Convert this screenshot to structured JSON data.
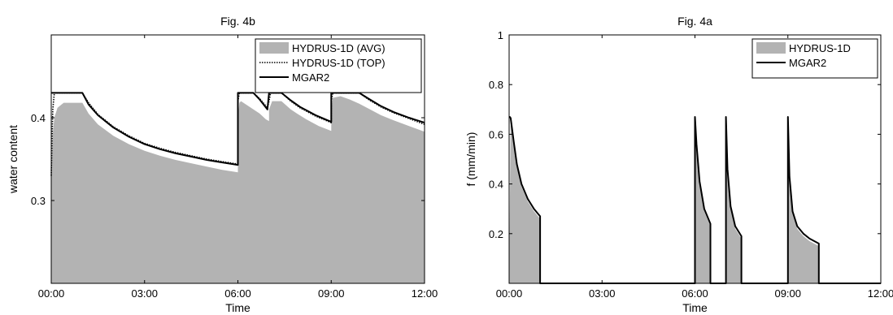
{
  "chart_data": [
    {
      "type": "area",
      "title": "Fig. 4b",
      "xlabel": "Time",
      "ylabel": "water content",
      "xlim": [
        0,
        12
      ],
      "ylim": [
        0.2,
        0.5
      ],
      "x_tick_labels": [
        "00:00",
        "03:00",
        "06:00",
        "09:00",
        "12:00"
      ],
      "x_tick_values": [
        0,
        3,
        6,
        9,
        12
      ],
      "y_tick_labels": [
        "0.3",
        "0.4"
      ],
      "y_tick_values": [
        0.3,
        0.4
      ],
      "grid": false,
      "legend_position": "top-right",
      "legend": [
        "HYDRUS-1D (AVG)",
        "HYDRUS-1D (TOP)",
        "MGAR2"
      ],
      "series": [
        {
          "name": "HYDRUS-1D (AVG)",
          "style": "filled-area",
          "color": "#b3b3b3",
          "x": [
            0,
            0.05,
            0.1,
            0.2,
            0.4,
            1.0,
            1.2,
            1.5,
            2.0,
            2.5,
            3.0,
            3.5,
            4.0,
            4.5,
            5.0,
            5.5,
            6.0,
            6.0,
            6.05,
            6.1,
            6.5,
            6.7,
            6.9,
            7.0,
            7.0,
            7.1,
            7.4,
            7.7,
            7.9,
            8.2,
            8.6,
            9.0,
            9.0,
            9.05,
            9.3,
            9.6,
            9.9,
            10.2,
            10.6,
            11.0,
            11.5,
            12.0
          ],
          "y": [
            0.33,
            0.38,
            0.4,
            0.412,
            0.418,
            0.418,
            0.405,
            0.392,
            0.378,
            0.368,
            0.36,
            0.354,
            0.349,
            0.345,
            0.341,
            0.337,
            0.334,
            0.4,
            0.418,
            0.42,
            0.41,
            0.405,
            0.398,
            0.396,
            0.41,
            0.42,
            0.42,
            0.41,
            0.405,
            0.398,
            0.39,
            0.384,
            0.41,
            0.424,
            0.426,
            0.422,
            0.417,
            0.411,
            0.403,
            0.397,
            0.39,
            0.383
          ]
        },
        {
          "name": "HYDRUS-1D (TOP)",
          "style": "dotted-line",
          "color": "#000000",
          "x": [
            0,
            0.05,
            0.1,
            1.0,
            1.2,
            1.5,
            2.0,
            2.5,
            3.0,
            3.5,
            4.0,
            4.5,
            5.0,
            5.5,
            6.0,
            6.0,
            6.05,
            6.5,
            6.7,
            6.95,
            7.0,
            7.05,
            7.4,
            7.7,
            8.0,
            8.5,
            9.0,
            9.0,
            9.05,
            9.9,
            10.2,
            10.6,
            11.0,
            11.5,
            12.0
          ],
          "y": [
            0.33,
            0.41,
            0.43,
            0.43,
            0.418,
            0.404,
            0.389,
            0.378,
            0.369,
            0.363,
            0.358,
            0.354,
            0.35,
            0.347,
            0.344,
            0.42,
            0.43,
            0.43,
            0.423,
            0.412,
            0.42,
            0.43,
            0.43,
            0.42,
            0.412,
            0.402,
            0.394,
            0.42,
            0.43,
            0.43,
            0.422,
            0.413,
            0.406,
            0.399,
            0.392
          ]
        },
        {
          "name": "MGAR2",
          "style": "solid-line",
          "color": "#000000",
          "x": [
            0,
            1.0,
            1.2,
            1.5,
            2.0,
            2.5,
            3.0,
            3.5,
            4.0,
            4.5,
            5.0,
            5.5,
            6.0,
            6.0,
            6.5,
            6.7,
            6.95,
            7.0,
            7.4,
            7.7,
            8.0,
            8.5,
            9.0,
            9.0,
            9.9,
            10.2,
            10.6,
            11.0,
            11.5,
            12.0
          ],
          "y": [
            0.43,
            0.43,
            0.416,
            0.403,
            0.388,
            0.377,
            0.368,
            0.362,
            0.357,
            0.353,
            0.349,
            0.346,
            0.343,
            0.43,
            0.43,
            0.422,
            0.41,
            0.43,
            0.43,
            0.421,
            0.413,
            0.403,
            0.395,
            0.43,
            0.43,
            0.423,
            0.414,
            0.407,
            0.4,
            0.394
          ]
        }
      ]
    },
    {
      "type": "area",
      "title": "Fig. 4a",
      "xlabel": "Time",
      "ylabel": "f (mm/min)",
      "xlim": [
        0,
        12
      ],
      "ylim": [
        0,
        1
      ],
      "x_tick_labels": [
        "00:00",
        "03:00",
        "06:00",
        "09:00",
        "12:00"
      ],
      "x_tick_values": [
        0,
        3,
        6,
        9,
        12
      ],
      "y_tick_labels": [
        "0.2",
        "0.4",
        "0.6",
        "0.8",
        "1"
      ],
      "y_tick_values": [
        0.2,
        0.4,
        0.6,
        0.8,
        1
      ],
      "grid": false,
      "legend_position": "top-right",
      "legend": [
        "HYDRUS-1D",
        "MGAR2"
      ],
      "series": [
        {
          "name": "HYDRUS-1D",
          "style": "filled-area",
          "color": "#b3b3b3",
          "x": [
            0,
            0.05,
            0.15,
            0.25,
            0.4,
            0.6,
            0.8,
            1.0,
            1.0,
            6.0,
            6.0,
            6.05,
            6.15,
            6.3,
            6.5,
            6.5,
            7.0,
            7.0,
            7.05,
            7.15,
            7.3,
            7.5,
            7.5,
            9.0,
            9.0,
            9.05,
            9.15,
            9.3,
            9.5,
            9.7,
            10.0,
            10.0,
            12.0
          ],
          "y": [
            0,
            0.66,
            0.56,
            0.47,
            0.39,
            0.33,
            0.29,
            0.26,
            0,
            0,
            0.66,
            0.55,
            0.4,
            0.29,
            0.23,
            0,
            0,
            0.66,
            0.45,
            0.3,
            0.22,
            0.18,
            0,
            0,
            0.66,
            0.42,
            0.28,
            0.22,
            0.19,
            0.17,
            0.15,
            0,
            0
          ]
        },
        {
          "name": "MGAR2",
          "style": "solid-line",
          "color": "#000000",
          "x": [
            0,
            0.02,
            0.05,
            0.15,
            0.25,
            0.4,
            0.6,
            0.8,
            1.0,
            1.0,
            6.0,
            6.0,
            6.05,
            6.15,
            6.3,
            6.5,
            6.5,
            7.0,
            7.0,
            7.05,
            7.15,
            7.3,
            7.5,
            7.5,
            9.0,
            9.0,
            9.05,
            9.15,
            9.3,
            9.5,
            9.7,
            10.0,
            10.0,
            12.0
          ],
          "y": [
            0.67,
            0.67,
            0.665,
            0.57,
            0.48,
            0.4,
            0.34,
            0.3,
            0.27,
            0,
            0,
            0.67,
            0.56,
            0.41,
            0.3,
            0.24,
            0,
            0,
            0.67,
            0.46,
            0.31,
            0.23,
            0.19,
            0,
            0,
            0.67,
            0.43,
            0.29,
            0.23,
            0.2,
            0.18,
            0.16,
            0,
            0
          ]
        }
      ]
    }
  ]
}
